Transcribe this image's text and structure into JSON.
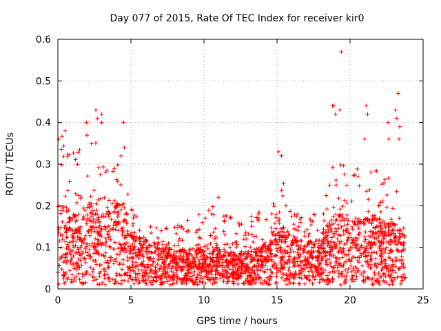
{
  "chart_data": {
    "type": "scatter",
    "title": "Day 077 of 2015, Rate Of TEC Index for receiver kir0",
    "xlabel": "GPS time / hours",
    "ylabel": "ROTI / TECUs",
    "xlim": [
      0,
      25
    ],
    "ylim": [
      0,
      0.6
    ],
    "xticks": [
      0,
      5,
      10,
      15,
      20,
      25
    ],
    "yticks": [
      0,
      0.1,
      0.2,
      0.3,
      0.4,
      0.5,
      0.6
    ],
    "xtick_labels": [
      "0",
      "5",
      "10",
      "15",
      "20",
      "25"
    ],
    "ytick_labels": [
      "0",
      "0.1",
      "0.2",
      "0.3",
      "0.4",
      "0.5",
      "0.6"
    ],
    "grid": true,
    "marker": "+",
    "color": "#ff0000",
    "envelope": [
      {
        "x": 0.0,
        "max": 0.36,
        "typ": 0.2
      },
      {
        "x": 0.5,
        "max": 0.38,
        "typ": 0.19
      },
      {
        "x": 1.0,
        "max": 0.33,
        "typ": 0.17
      },
      {
        "x": 1.5,
        "max": 0.34,
        "typ": 0.18
      },
      {
        "x": 2.0,
        "max": 0.4,
        "typ": 0.19
      },
      {
        "x": 2.5,
        "max": 0.43,
        "typ": 0.2
      },
      {
        "x": 3.0,
        "max": 0.3,
        "typ": 0.19
      },
      {
        "x": 3.5,
        "max": 0.29,
        "typ": 0.18
      },
      {
        "x": 4.0,
        "max": 0.33,
        "typ": 0.21
      },
      {
        "x": 4.5,
        "max": 0.34,
        "typ": 0.2
      },
      {
        "x": 5.0,
        "max": 0.2,
        "typ": 0.13
      },
      {
        "x": 6.0,
        "max": 0.15,
        "typ": 0.11
      },
      {
        "x": 7.0,
        "max": 0.15,
        "typ": 0.1
      },
      {
        "x": 8.0,
        "max": 0.15,
        "typ": 0.08
      },
      {
        "x": 9.0,
        "max": 0.19,
        "typ": 0.09
      },
      {
        "x": 10.0,
        "max": 0.18,
        "typ": 0.09
      },
      {
        "x": 11.0,
        "max": 0.21,
        "typ": 0.09
      },
      {
        "x": 12.0,
        "max": 0.17,
        "typ": 0.08
      },
      {
        "x": 13.0,
        "max": 0.17,
        "typ": 0.08
      },
      {
        "x": 14.0,
        "max": 0.22,
        "typ": 0.1
      },
      {
        "x": 14.5,
        "max": 0.21,
        "typ": 0.1
      },
      {
        "x": 15.0,
        "max": 0.26,
        "typ": 0.15
      },
      {
        "x": 15.5,
        "max": 0.26,
        "typ": 0.14
      },
      {
        "x": 16.0,
        "max": 0.2,
        "typ": 0.12
      },
      {
        "x": 17.0,
        "max": 0.17,
        "typ": 0.1
      },
      {
        "x": 18.0,
        "max": 0.2,
        "typ": 0.12
      },
      {
        "x": 18.5,
        "max": 0.27,
        "typ": 0.15
      },
      {
        "x": 19.0,
        "max": 0.33,
        "typ": 0.17
      },
      {
        "x": 19.5,
        "max": 0.34,
        "typ": 0.18
      },
      {
        "x": 20.0,
        "max": 0.26,
        "typ": 0.15
      },
      {
        "x": 20.5,
        "max": 0.29,
        "typ": 0.16
      },
      {
        "x": 21.0,
        "max": 0.3,
        "typ": 0.16
      },
      {
        "x": 21.5,
        "max": 0.29,
        "typ": 0.17
      },
      {
        "x": 22.0,
        "max": 0.28,
        "typ": 0.16
      },
      {
        "x": 22.5,
        "max": 0.28,
        "typ": 0.15
      },
      {
        "x": 23.0,
        "max": 0.27,
        "typ": 0.15
      },
      {
        "x": 23.5,
        "max": 0.21,
        "typ": 0.13
      },
      {
        "x": 23.8,
        "max": 0.18,
        "typ": 0.12
      }
    ],
    "outliers": [
      [
        0.05,
        0.36
      ],
      [
        0.5,
        0.38
      ],
      [
        1.95,
        0.4
      ],
      [
        2.6,
        0.43
      ],
      [
        2.7,
        0.41
      ],
      [
        3.0,
        0.42
      ],
      [
        3.0,
        0.4
      ],
      [
        4.5,
        0.4
      ],
      [
        4.55,
        0.34
      ],
      [
        11.0,
        0.22
      ],
      [
        15.1,
        0.33
      ],
      [
        15.3,
        0.32
      ],
      [
        18.8,
        0.44
      ],
      [
        18.9,
        0.44
      ],
      [
        19.0,
        0.42
      ],
      [
        19.3,
        0.43
      ],
      [
        19.4,
        0.57
      ],
      [
        21.1,
        0.44
      ],
      [
        21.2,
        0.42
      ],
      [
        21.0,
        0.36
      ],
      [
        22.6,
        0.4
      ],
      [
        22.65,
        0.36
      ],
      [
        23.1,
        0.43
      ],
      [
        23.2,
        0.41
      ],
      [
        23.3,
        0.47
      ],
      [
        23.4,
        0.39
      ],
      [
        23.35,
        0.36
      ],
      [
        23.5,
        0.03
      ]
    ]
  }
}
